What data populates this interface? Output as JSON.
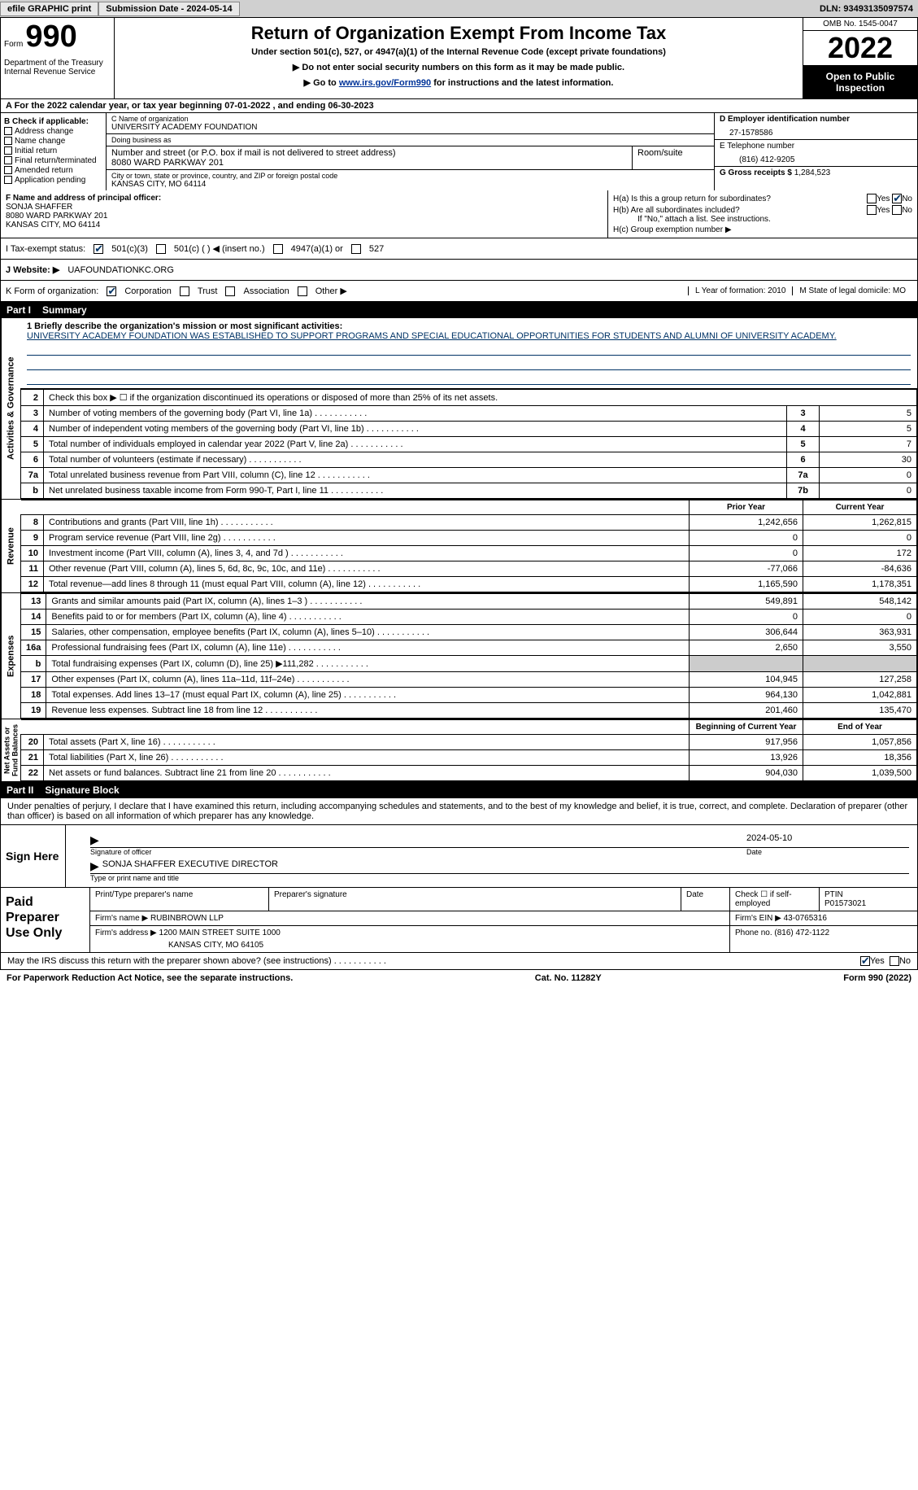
{
  "topbar": {
    "efile": "efile GRAPHIC print",
    "submission": "Submission Date - 2024-05-14",
    "dln": "DLN: 93493135097574"
  },
  "header": {
    "form_word": "Form",
    "form_num": "990",
    "dept": "Department of the Treasury\nInternal Revenue Service",
    "title": "Return of Organization Exempt From Income Tax",
    "sub": "Under section 501(c), 527, or 4947(a)(1) of the Internal Revenue Code (except private foundations)",
    "note1": "▶ Do not enter social security numbers on this form as it may be made public.",
    "note2_pre": "▶ Go to ",
    "note2_link": "www.irs.gov/Form990",
    "note2_post": " for instructions and the latest information.",
    "omb": "OMB No. 1545-0047",
    "year": "2022",
    "open": "Open to Public Inspection"
  },
  "row_a": "A For the 2022 calendar year, or tax year beginning 07-01-2022    , and ending 06-30-2023",
  "col_b": {
    "title": "B Check if applicable:",
    "opts": [
      "Address change",
      "Name change",
      "Initial return",
      "Final return/terminated",
      "Amended return",
      "Application pending"
    ]
  },
  "col_c": {
    "name_lbl": "C Name of organization",
    "name": "UNIVERSITY ACADEMY FOUNDATION",
    "dba_lbl": "Doing business as",
    "dba": "",
    "addr_lbl": "Number and street (or P.O. box if mail is not delivered to street address)",
    "addr": "8080 WARD PARKWAY 201",
    "room_lbl": "Room/suite",
    "city_lbl": "City or town, state or province, country, and ZIP or foreign postal code",
    "city": "KANSAS CITY, MO  64114"
  },
  "col_de": {
    "d_lbl": "D Employer identification number",
    "d_val": "27-1578586",
    "e_lbl": "E Telephone number",
    "e_val": "(816) 412-9205",
    "g_lbl": "G Gross receipts $",
    "g_val": "1,284,523"
  },
  "fg": {
    "f_lbl": "F Name and address of principal officer:",
    "f_name": "SONJA SHAFFER",
    "f_addr1": "8080 WARD PARKWAY 201",
    "f_addr2": "KANSAS CITY, MO  64114",
    "ha": "H(a)  Is this a group return for subordinates?",
    "hb": "H(b)  Are all subordinates included?",
    "hb_note": "If \"No,\" attach a list. See instructions.",
    "hc": "H(c)  Group exemption number ▶"
  },
  "tax": {
    "i": "I    Tax-exempt status:",
    "opt1": "501(c)(3)",
    "opt2": "501(c) (  ) ◀ (insert no.)",
    "opt3": "4947(a)(1) or",
    "opt4": "527"
  },
  "web": {
    "j": "J    Website: ▶",
    "url": "UAFOUNDATIONKC.ORG"
  },
  "k": {
    "label": "K Form of organization:",
    "opts": [
      "Corporation",
      "Trust",
      "Association",
      "Other ▶"
    ],
    "l": "L Year of formation: 2010",
    "m": "M State of legal domicile: MO"
  },
  "part1": {
    "pt": "Part I",
    "title": "Summary"
  },
  "mission": {
    "line1_lbl": "1   Briefly describe the organization's mission or most significant activities:",
    "desc": "UNIVERSITY ACADEMY FOUNDATION WAS ESTABLISHED TO SUPPORT PROGRAMS AND SPECIAL EDUCATIONAL OPPORTUNITIES FOR STUDENTS AND ALUMNI OF UNIVERSITY ACADEMY."
  },
  "gov_rows": [
    {
      "n": "2",
      "t": "Check this box ▶ ☐ if the organization discontinued its operations or disposed of more than 25% of its net assets.",
      "box": "",
      "v": ""
    },
    {
      "n": "3",
      "t": "Number of voting members of the governing body (Part VI, line 1a)",
      "box": "3",
      "v": "5"
    },
    {
      "n": "4",
      "t": "Number of independent voting members of the governing body (Part VI, line 1b)",
      "box": "4",
      "v": "5"
    },
    {
      "n": "5",
      "t": "Total number of individuals employed in calendar year 2022 (Part V, line 2a)",
      "box": "5",
      "v": "7"
    },
    {
      "n": "6",
      "t": "Total number of volunteers (estimate if necessary)",
      "box": "6",
      "v": "30"
    },
    {
      "n": "7a",
      "t": "Total unrelated business revenue from Part VIII, column (C), line 12",
      "box": "7a",
      "v": "0"
    },
    {
      "n": "b",
      "t": "Net unrelated business taxable income from Form 990-T, Part I, line 11",
      "box": "7b",
      "v": "0"
    }
  ],
  "fin_hdr": {
    "prior": "Prior Year",
    "current": "Current Year"
  },
  "rev_rows": [
    {
      "n": "8",
      "t": "Contributions and grants (Part VIII, line 1h)",
      "p": "1,242,656",
      "c": "1,262,815"
    },
    {
      "n": "9",
      "t": "Program service revenue (Part VIII, line 2g)",
      "p": "0",
      "c": "0"
    },
    {
      "n": "10",
      "t": "Investment income (Part VIII, column (A), lines 3, 4, and 7d )",
      "p": "0",
      "c": "172"
    },
    {
      "n": "11",
      "t": "Other revenue (Part VIII, column (A), lines 5, 6d, 8c, 9c, 10c, and 11e)",
      "p": "-77,066",
      "c": "-84,636"
    },
    {
      "n": "12",
      "t": "Total revenue—add lines 8 through 11 (must equal Part VIII, column (A), line 12)",
      "p": "1,165,590",
      "c": "1,178,351"
    }
  ],
  "exp_rows": [
    {
      "n": "13",
      "t": "Grants and similar amounts paid (Part IX, column (A), lines 1–3 )",
      "p": "549,891",
      "c": "548,142"
    },
    {
      "n": "14",
      "t": "Benefits paid to or for members (Part IX, column (A), line 4)",
      "p": "0",
      "c": "0"
    },
    {
      "n": "15",
      "t": "Salaries, other compensation, employee benefits (Part IX, column (A), lines 5–10)",
      "p": "306,644",
      "c": "363,931"
    },
    {
      "n": "16a",
      "t": "Professional fundraising fees (Part IX, column (A), line 11e)",
      "p": "2,650",
      "c": "3,550"
    },
    {
      "n": "b",
      "t": "Total fundraising expenses (Part IX, column (D), line 25) ▶111,282",
      "p": "shade",
      "c": "shade"
    },
    {
      "n": "17",
      "t": "Other expenses (Part IX, column (A), lines 11a–11d, 11f–24e)",
      "p": "104,945",
      "c": "127,258"
    },
    {
      "n": "18",
      "t": "Total expenses. Add lines 13–17 (must equal Part IX, column (A), line 25)",
      "p": "964,130",
      "c": "1,042,881"
    },
    {
      "n": "19",
      "t": "Revenue less expenses. Subtract line 18 from line 12",
      "p": "201,460",
      "c": "135,470"
    }
  ],
  "na_hdr": {
    "prior": "Beginning of Current Year",
    "current": "End of Year"
  },
  "na_rows": [
    {
      "n": "20",
      "t": "Total assets (Part X, line 16)",
      "p": "917,956",
      "c": "1,057,856"
    },
    {
      "n": "21",
      "t": "Total liabilities (Part X, line 26)",
      "p": "13,926",
      "c": "18,356"
    },
    {
      "n": "22",
      "t": "Net assets or fund balances. Subtract line 21 from line 20",
      "p": "904,030",
      "c": "1,039,500"
    }
  ],
  "part2": {
    "pt": "Part II",
    "title": "Signature Block"
  },
  "sig": {
    "decl": "Under penalties of perjury, I declare that I have examined this return, including accompanying schedules and statements, and to the best of my knowledge and belief, it is true, correct, and complete. Declaration of preparer (other than officer) is based on all information of which preparer has any knowledge.",
    "here": "Sign Here",
    "sig_of": "Signature of officer",
    "date_lbl": "Date",
    "date": "2024-05-10",
    "name": "SONJA SHAFFER  EXECUTIVE DIRECTOR",
    "name_lbl": "Type or print name and title"
  },
  "prep": {
    "title": "Paid Preparer Use Only",
    "r1": {
      "a": "Print/Type preparer's name",
      "b": "Preparer's signature",
      "c": "Date",
      "d": "Check ☐ if self-employed",
      "e_lbl": "PTIN",
      "e": "P01573021"
    },
    "r2": {
      "a": "Firm's name    ▶",
      "b": "RUBINBROWN LLP",
      "c": "Firm's EIN ▶",
      "d": "43-0765316"
    },
    "r3": {
      "a": "Firm's address ▶",
      "b": "1200 MAIN STREET SUITE 1000",
      "c": "Phone no. (816) 472-1122"
    },
    "r3b": "KANSAS CITY, MO  64105"
  },
  "footer_q": "May the IRS discuss this return with the preparer shown above? (see instructions)",
  "footer": {
    "left": "For Paperwork Reduction Act Notice, see the separate instructions.",
    "mid": "Cat. No. 11282Y",
    "right": "Form 990 (2022)"
  },
  "yesno": {
    "yes": "Yes",
    "no": "No"
  }
}
